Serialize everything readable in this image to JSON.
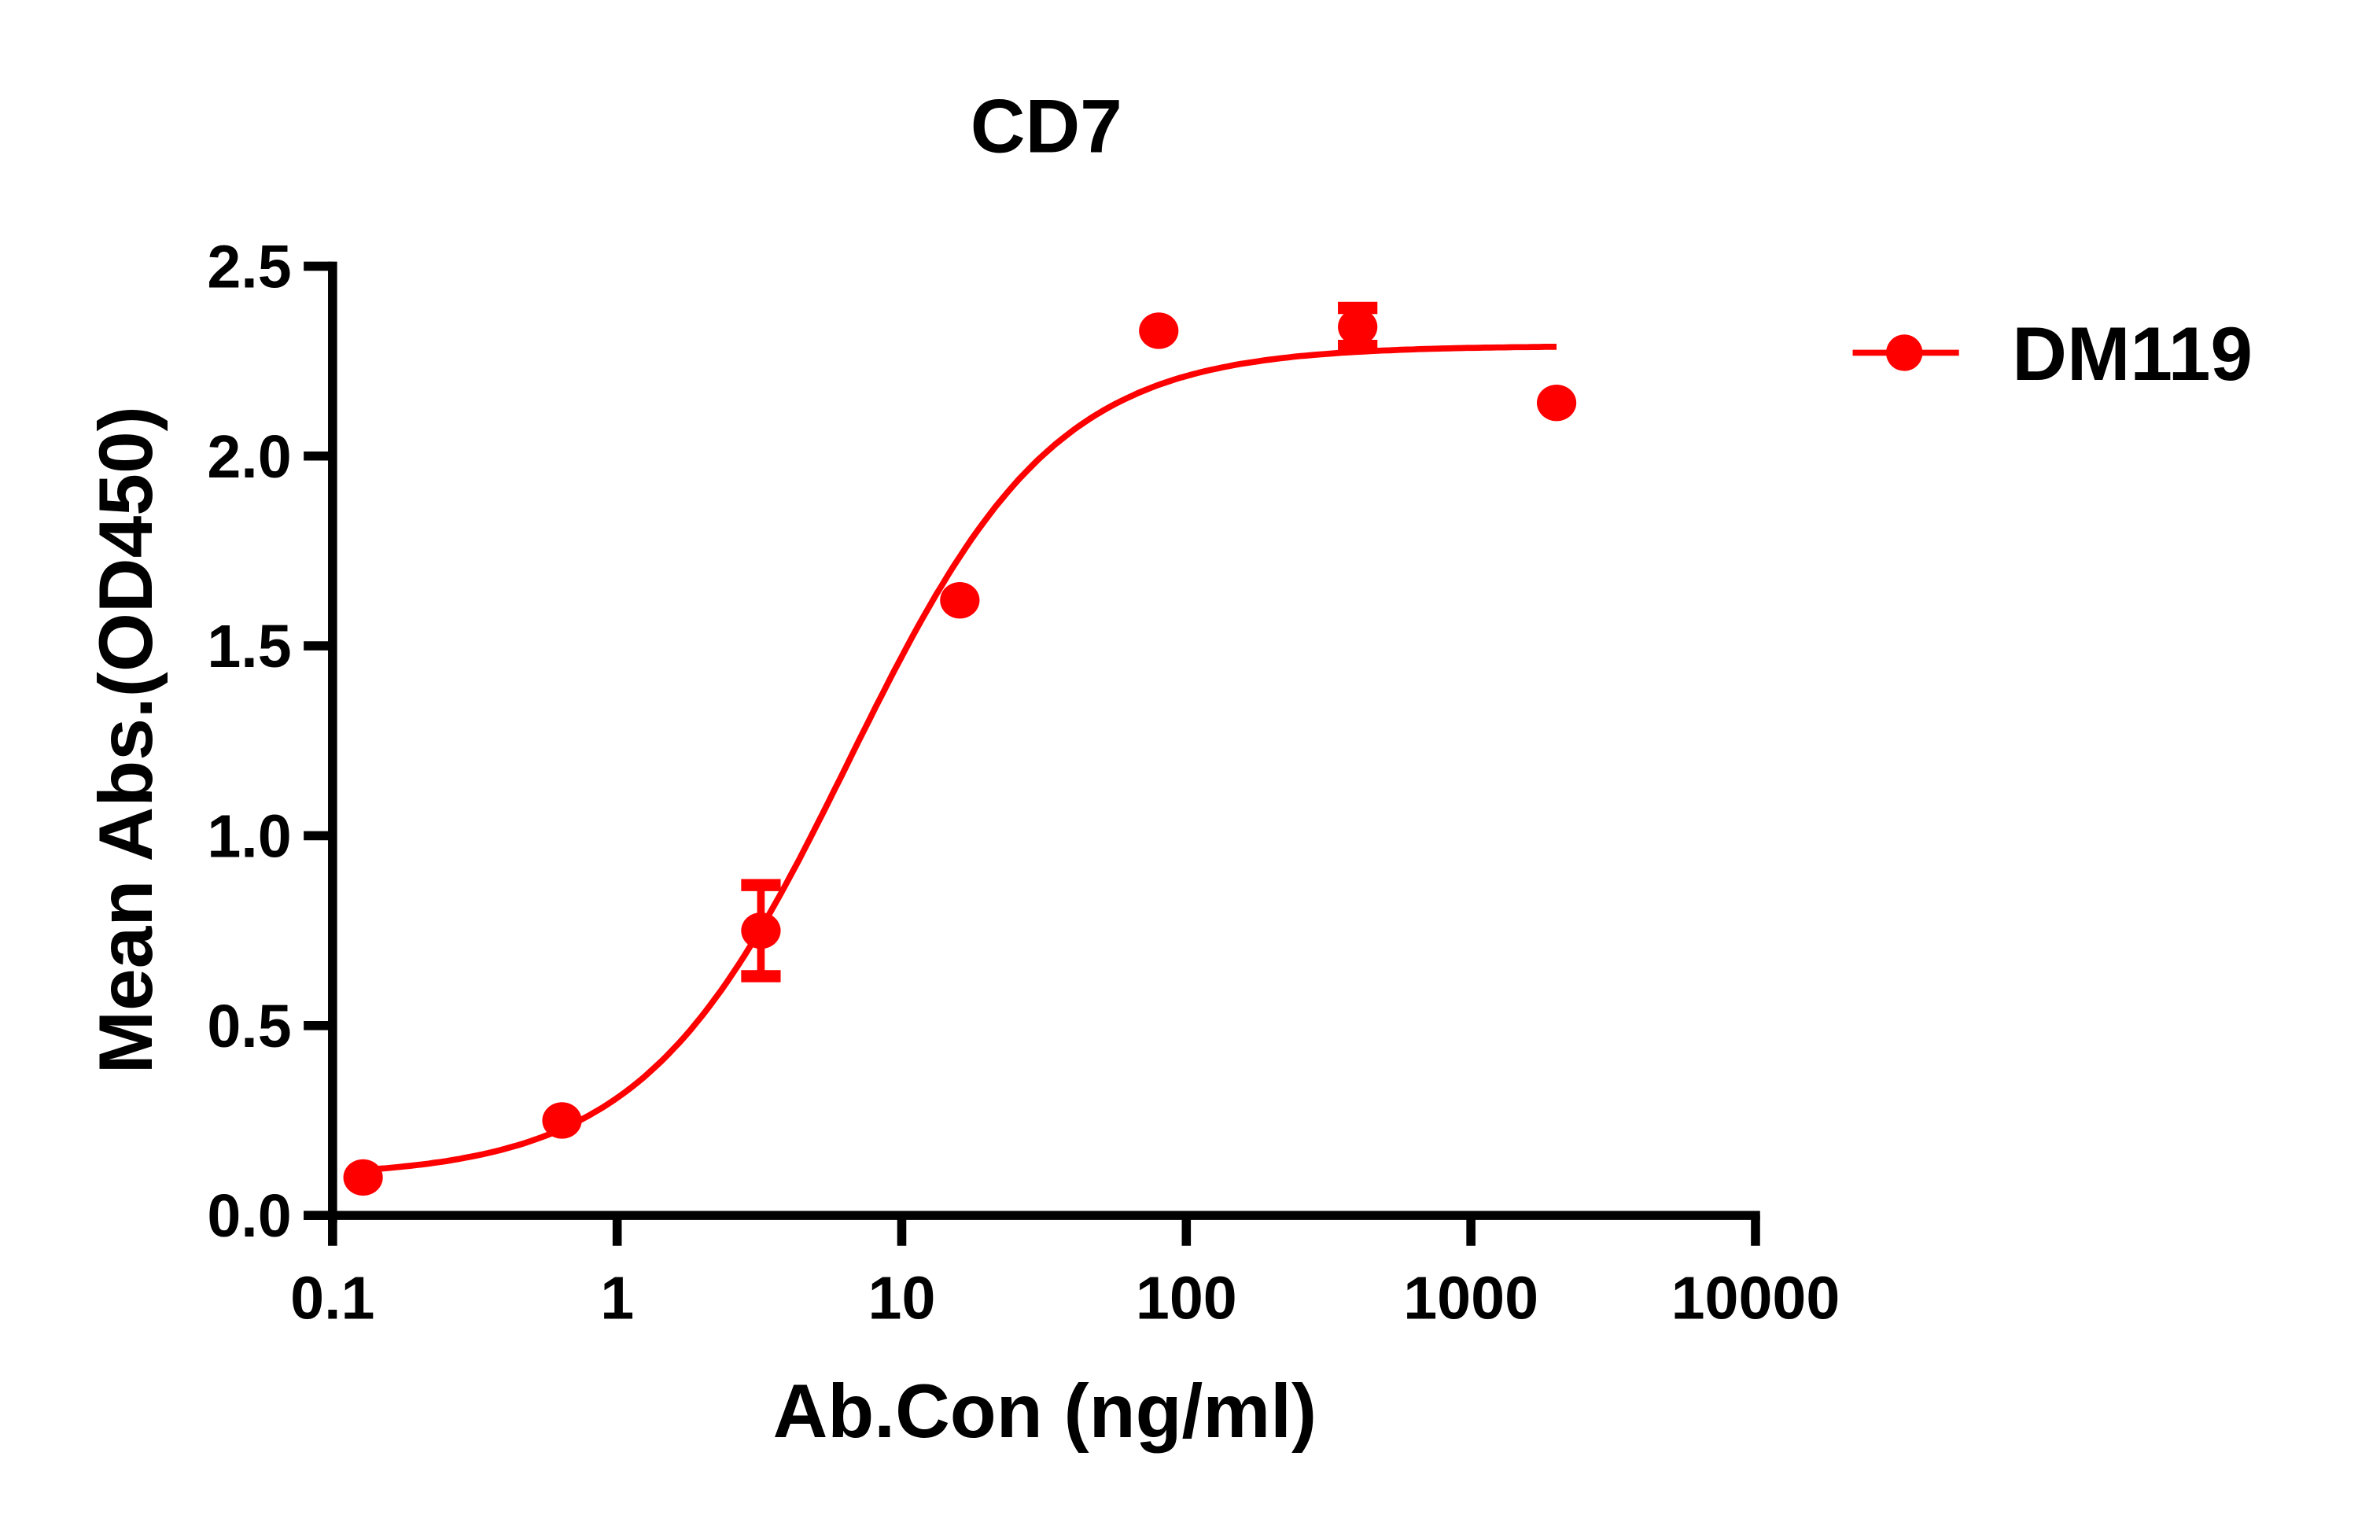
{
  "chart_data": {
    "type": "scatter",
    "title": "CD7",
    "xlabel": "Ab.Con (ng/ml)",
    "ylabel": "Mean Abs.(OD450)",
    "x_scale": "log",
    "xlim": [
      0.1,
      10000
    ],
    "ylim": [
      0,
      2.5
    ],
    "x_ticks": [
      "0.1",
      "1",
      "10",
      "100",
      "1000",
      "10000"
    ],
    "x_tick_values": [
      0.1,
      1,
      10,
      100,
      1000,
      10000
    ],
    "y_ticks": [
      "0.0",
      "0.5",
      "1.0",
      "1.5",
      "2.0",
      "2.5"
    ],
    "y_tick_values": [
      0,
      0.5,
      1.0,
      1.5,
      2.0,
      2.5
    ],
    "grid": false,
    "legend_placement": "right",
    "series": [
      {
        "name": "DM119",
        "color": "#ff0000",
        "x": [
          0.128,
          0.64,
          3.2,
          16,
          80,
          400,
          2000
        ],
        "y": [
          0.1,
          0.25,
          0.75,
          1.62,
          2.33,
          2.34,
          2.14
        ],
        "error": [
          0,
          0,
          0.12,
          0,
          0,
          0.05,
          0
        ],
        "fit": "sigmoidal curve"
      }
    ]
  }
}
